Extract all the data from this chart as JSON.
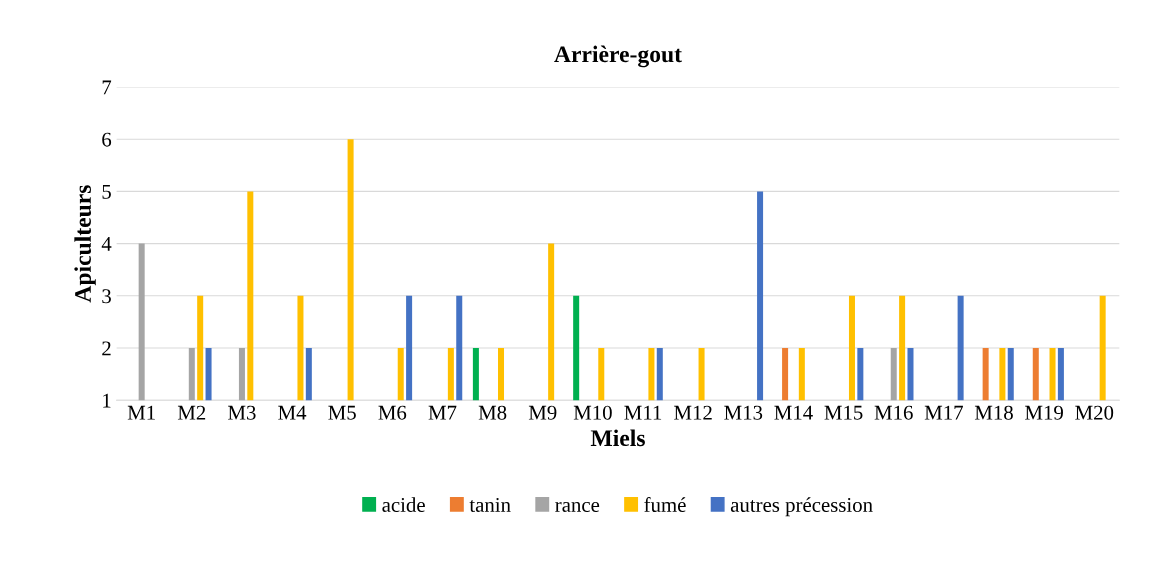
{
  "chart_data": {
    "type": "bar",
    "title": "Arrière-gout",
    "xlabel": "Miels",
    "ylabel": "Apiculteurs",
    "categories": [
      "M1",
      "M2",
      "M3",
      "M4",
      "M5",
      "M6",
      "M7",
      "M8",
      "M9",
      "M10",
      "M11",
      "M12",
      "M13",
      "M14",
      "M15",
      "M16",
      "M17",
      "M18",
      "M19",
      "M20"
    ],
    "series": [
      {
        "name": "acide",
        "color": "#00b050",
        "values": [
          null,
          null,
          null,
          null,
          null,
          null,
          null,
          2,
          null,
          3,
          null,
          null,
          null,
          null,
          null,
          null,
          null,
          null,
          null,
          null
        ]
      },
      {
        "name": "tanin",
        "color": "#ed7d31",
        "values": [
          null,
          null,
          null,
          null,
          null,
          null,
          null,
          null,
          null,
          null,
          null,
          null,
          null,
          2,
          null,
          null,
          null,
          2,
          2,
          null
        ]
      },
      {
        "name": "rance",
        "color": "#a5a5a5",
        "values": [
          4,
          2,
          2,
          null,
          null,
          null,
          null,
          null,
          null,
          null,
          null,
          null,
          null,
          null,
          null,
          2,
          null,
          null,
          null,
          null
        ]
      },
      {
        "name": "fumé",
        "color": "#ffc000",
        "values": [
          null,
          3,
          5,
          3,
          6,
          2,
          2,
          2,
          4,
          2,
          2,
          2,
          null,
          2,
          3,
          3,
          null,
          2,
          2,
          3
        ]
      },
      {
        "name": "autres précession",
        "color": "#4472c4",
        "values": [
          null,
          2,
          null,
          2,
          null,
          3,
          3,
          null,
          null,
          null,
          2,
          null,
          5,
          null,
          2,
          2,
          3,
          2,
          2,
          null
        ]
      }
    ],
    "ylim": [
      1,
      7
    ],
    "yticks": [
      1,
      2,
      3,
      4,
      5,
      6,
      7
    ],
    "grid": "y",
    "legend": "bottom"
  }
}
